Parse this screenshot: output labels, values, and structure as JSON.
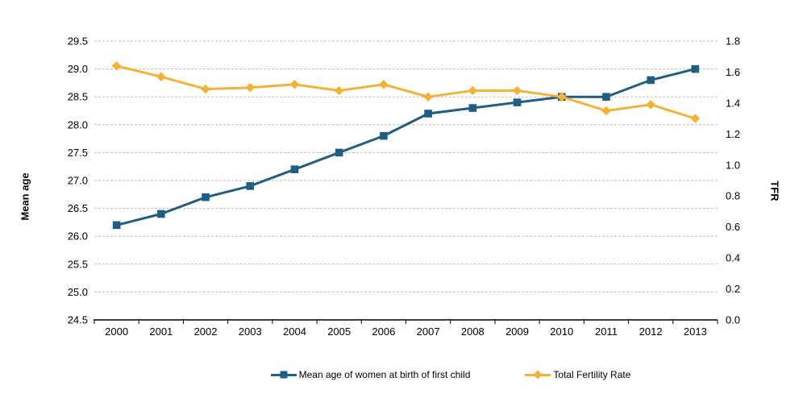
{
  "chart_data": {
    "type": "line",
    "title": "",
    "x": [
      "2000",
      "2001",
      "2002",
      "2003",
      "2004",
      "2005",
      "2006",
      "2007",
      "2008",
      "2009",
      "2010",
      "2011",
      "2012",
      "2013"
    ],
    "series": [
      {
        "name": "Mean age of women at birth of first child",
        "axis": "left",
        "color": "#205D82",
        "marker": "square",
        "values": [
          26.2,
          26.4,
          26.7,
          26.9,
          27.2,
          27.5,
          27.8,
          28.2,
          28.3,
          28.4,
          28.5,
          28.5,
          28.8,
          29.0
        ]
      },
      {
        "name": "Total Fertility Rate",
        "axis": "right",
        "color": "#F3B237",
        "marker": "diamond",
        "values": [
          1.64,
          1.57,
          1.49,
          1.5,
          1.52,
          1.48,
          1.52,
          1.44,
          1.48,
          1.48,
          1.44,
          1.35,
          1.39,
          1.3
        ]
      }
    ],
    "left_axis": {
      "label": "Mean age",
      "min": 24.5,
      "max": 29.5,
      "step": 0.5,
      "ticks": [
        "24.5",
        "25.0",
        "25.5",
        "26.0",
        "26.5",
        "27.0",
        "27.5",
        "28.0",
        "28.5",
        "29.0",
        "29.5"
      ]
    },
    "right_axis": {
      "label": "TFR",
      "min": 0.0,
      "max": 1.8,
      "step": 0.2,
      "ticks": [
        "0.0",
        "0.2",
        "0.4",
        "0.6",
        "0.8",
        "1.0",
        "1.2",
        "1.4",
        "1.6",
        "1.8"
      ]
    },
    "grid": {
      "horizontal": true,
      "style": "dashed"
    },
    "legend_position": "bottom",
    "colors": {
      "grid": "#BDBDBD",
      "axis": "#000000",
      "background": "#FFFFFF"
    }
  }
}
